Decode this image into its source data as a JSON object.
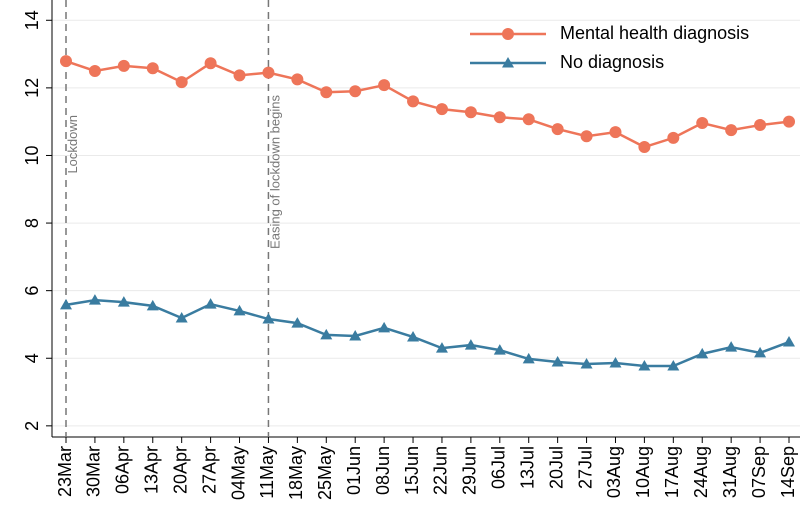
{
  "chart_data": {
    "type": "line",
    "categories": [
      "23Mar",
      "30Mar",
      "06Apr",
      "13Apr",
      "20Apr",
      "27Apr",
      "04May",
      "11May",
      "18May",
      "25May",
      "01Jun",
      "08Jun",
      "15Jun",
      "22Jun",
      "29Jun",
      "06Jul",
      "13Jul",
      "20Jul",
      "27Jul",
      "03Aug",
      "10Aug",
      "17Aug",
      "24Aug",
      "31Aug",
      "07Sep",
      "14Sep"
    ],
    "series": [
      {
        "name": "Mental health diagnosis",
        "color": "#ee7559",
        "marker": "circle",
        "values": [
          12.79,
          12.5,
          12.65,
          12.58,
          12.17,
          12.73,
          12.37,
          12.45,
          12.25,
          11.87,
          11.9,
          12.08,
          11.6,
          11.37,
          11.28,
          11.13,
          11.07,
          10.78,
          10.57,
          10.69,
          10.25,
          10.52,
          10.96,
          10.75,
          10.9,
          11.0
        ]
      },
      {
        "name": "No diagnosis",
        "color": "#3a7ca0",
        "marker": "triangle",
        "values": [
          5.58,
          5.72,
          5.66,
          5.55,
          5.19,
          5.6,
          5.4,
          5.16,
          5.04,
          4.69,
          4.66,
          4.9,
          4.63,
          4.3,
          4.39,
          4.24,
          3.98,
          3.89,
          3.83,
          3.86,
          3.77,
          3.77,
          4.13,
          4.33,
          4.16,
          4.48
        ]
      }
    ],
    "ylim": [
      1.67,
      14.6
    ],
    "yticks": [
      2,
      4,
      6,
      8,
      10,
      12,
      14
    ],
    "grid": true,
    "legend": "top-right",
    "annotations": [
      {
        "text": "Lockdown",
        "x": "23Mar"
      },
      {
        "text": "Easing of lockdown begins",
        "x": "11May"
      }
    ]
  }
}
